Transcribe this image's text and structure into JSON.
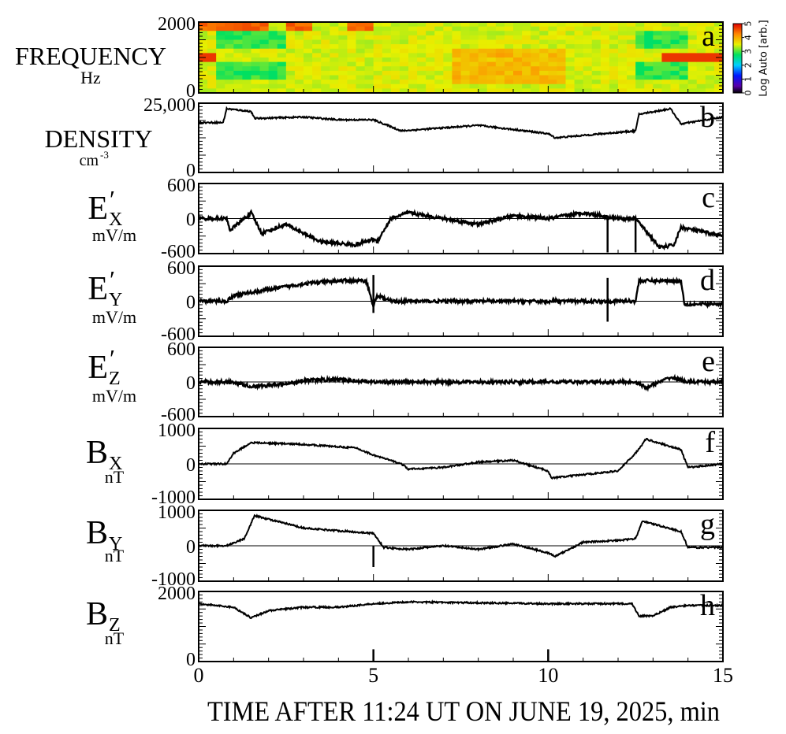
{
  "xaxis": {
    "label": "TIME AFTER 11:24 UT ON JUNE 19, 2025, min",
    "range": [
      0,
      15
    ],
    "ticks": [
      "0",
      "5",
      "10",
      "15"
    ]
  },
  "colorbar": {
    "label": "Log Auto [arb.]",
    "ticks": [
      "0",
      "1",
      "2",
      "3",
      "4",
      "5"
    ],
    "range": [
      0,
      5
    ]
  },
  "panels": [
    {
      "letter": "a",
      "label": "FREQUENCY",
      "unit": "Hz",
      "ticks": [
        "2000",
        "0"
      ]
    },
    {
      "letter": "b",
      "label": "DENSITY",
      "unit": "cm",
      "unit_sup": "-3",
      "ticks": [
        "25,000",
        "0"
      ]
    },
    {
      "letter": "c",
      "label": "E",
      "label_sub": "X",
      "prime": "′",
      "unit": "mV/m",
      "ticks": [
        "600",
        "0",
        "-600"
      ]
    },
    {
      "letter": "d",
      "label": "E",
      "label_sub": "Y",
      "prime": "′",
      "unit": "mV/m",
      "ticks": [
        "600",
        "0",
        "-600"
      ]
    },
    {
      "letter": "e",
      "label": "E",
      "label_sub": "Z",
      "prime": "′",
      "unit": "mV/m",
      "ticks": [
        "600",
        "0",
        "-600"
      ]
    },
    {
      "letter": "f",
      "label": "B",
      "label_sub": "X",
      "unit": "nT",
      "ticks": [
        "1000",
        "0",
        "-1000"
      ]
    },
    {
      "letter": "g",
      "label": "B",
      "label_sub": "Y",
      "unit": "nT",
      "ticks": [
        "1000",
        "0",
        "-1000"
      ]
    },
    {
      "letter": "h",
      "label": "B",
      "label_sub": "Z",
      "unit": "nT",
      "ticks": [
        "2000",
        "0"
      ]
    }
  ],
  "chart_data": {
    "type": "line",
    "x_unit": "min",
    "xlim": [
      0,
      15
    ],
    "spectrogram": {
      "panel": "a",
      "ylim": [
        0,
        2000
      ],
      "zlim": [
        0,
        5
      ],
      "note": "autocorrelation spectrogram, mostly 3-4 (yellow), lower values (green) near 0.5-2.5 min and 12.5-14 min, red band near 1000 Hz after 13 min"
    },
    "series": [
      {
        "name": "DENSITY",
        "panel": "b",
        "ylim": [
          0,
          25000
        ],
        "x": [
          0,
          0.7,
          0.8,
          1.5,
          1.6,
          3,
          4,
          5,
          5.8,
          8,
          10,
          10.2,
          12.5,
          12.6,
          13.5,
          13.8,
          15
        ],
        "values": [
          18000,
          18000,
          23000,
          22000,
          19500,
          20000,
          19000,
          19000,
          15000,
          17000,
          14000,
          12500,
          15000,
          21000,
          23000,
          17500,
          20000
        ]
      },
      {
        "name": "E′x",
        "panel": "c",
        "ylim": [
          -600,
          600
        ],
        "x": [
          0,
          0.8,
          0.9,
          1.5,
          1.8,
          2.5,
          3.5,
          4.5,
          5.0,
          5.1,
          5.5,
          6,
          8,
          9,
          10,
          11,
          12,
          12.5,
          13.2,
          13.6,
          13.8,
          15
        ],
        "values": [
          0,
          0,
          -200,
          100,
          -250,
          -100,
          -400,
          -450,
          -350,
          -400,
          0,
          100,
          -100,
          50,
          0,
          100,
          0,
          0,
          -500,
          -450,
          -150,
          -300
        ]
      },
      {
        "name": "E′y",
        "panel": "d",
        "ylim": [
          -600,
          600
        ],
        "x": [
          0,
          0.8,
          1,
          2,
          3,
          4,
          4.8,
          5,
          5.1,
          5.5,
          8,
          12.5,
          12.6,
          13.8,
          13.9,
          15
        ],
        "values": [
          0,
          0,
          100,
          200,
          300,
          350,
          350,
          -100,
          100,
          0,
          0,
          0,
          350,
          350,
          -50,
          -50
        ]
      },
      {
        "name": "E′z",
        "panel": "e",
        "ylim": [
          -600,
          600
        ],
        "x": [
          0,
          1,
          1.5,
          2.5,
          3,
          4,
          5,
          6,
          12,
          12.5,
          12.8,
          13,
          13.5,
          14,
          15
        ],
        "values": [
          0,
          0,
          -80,
          -40,
          30,
          40,
          0,
          0,
          0,
          0,
          -100,
          -50,
          80,
          0,
          0
        ]
      },
      {
        "name": "Bx",
        "panel": "f",
        "ylim": [
          -1000,
          1000
        ],
        "x": [
          0,
          0.8,
          1,
          1.5,
          3,
          4.5,
          5,
          5.8,
          6,
          7,
          8,
          9,
          10,
          10.1,
          12,
          12.5,
          12.8,
          13.8,
          14,
          15
        ],
        "values": [
          0,
          0,
          300,
          600,
          550,
          450,
          250,
          0,
          -150,
          -100,
          50,
          100,
          -200,
          -400,
          -200,
          300,
          700,
          400,
          -100,
          0
        ]
      },
      {
        "name": "By",
        "panel": "g",
        "ylim": [
          -1000,
          1000
        ],
        "x": [
          0,
          0.8,
          1.3,
          1.6,
          3,
          5,
          5.3,
          6,
          7,
          8,
          9,
          10,
          10.2,
          11,
          12,
          12.5,
          12.7,
          13.8,
          14,
          15
        ],
        "values": [
          0,
          0,
          200,
          850,
          500,
          350,
          -50,
          -100,
          0,
          -100,
          50,
          -200,
          -300,
          100,
          150,
          200,
          700,
          400,
          -50,
          -50
        ]
      },
      {
        "name": "Bz",
        "panel": "h",
        "ylim": [
          0,
          2000
        ],
        "x": [
          0,
          1,
          1.5,
          2,
          3,
          4,
          5,
          6,
          10,
          12.4,
          12.6,
          13,
          13.5,
          14,
          15
        ],
        "values": [
          1650,
          1550,
          1250,
          1450,
          1550,
          1550,
          1650,
          1700,
          1650,
          1650,
          1300,
          1300,
          1550,
          1600,
          1600
        ]
      }
    ]
  }
}
